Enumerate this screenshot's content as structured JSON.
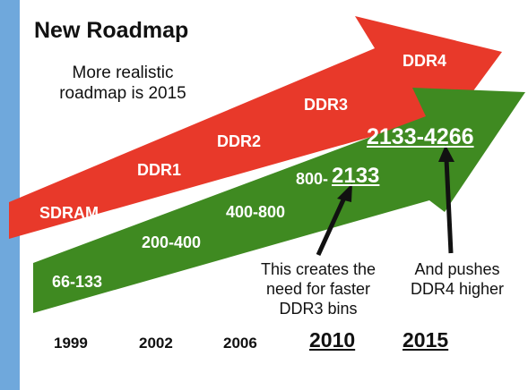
{
  "title": "New Roadmap",
  "note": "More realistic\nroadmap is 2015",
  "colors": {
    "red_arrow": "#e8392a",
    "green_arrow": "#3f8a21",
    "left_strip": "#6fa8dc",
    "pointer": "#111111"
  },
  "memory_generations": [
    "SDRAM",
    "DDR1",
    "DDR2",
    "DDR3",
    "DDR4"
  ],
  "speed_ranges": {
    "r1": "66-133",
    "r2": "200-400",
    "r3": "400-800",
    "r4_prefix": "800-",
    "r4_highlight": "2133",
    "r5": "2133-4266"
  },
  "years": [
    "1999",
    "2002",
    "2006",
    "2010",
    "2015"
  ],
  "callouts": {
    "ddr3_bins": "This creates the\nneed for faster\nDDR3 bins",
    "ddr4_higher": "And pushes\nDDR4 higher"
  }
}
